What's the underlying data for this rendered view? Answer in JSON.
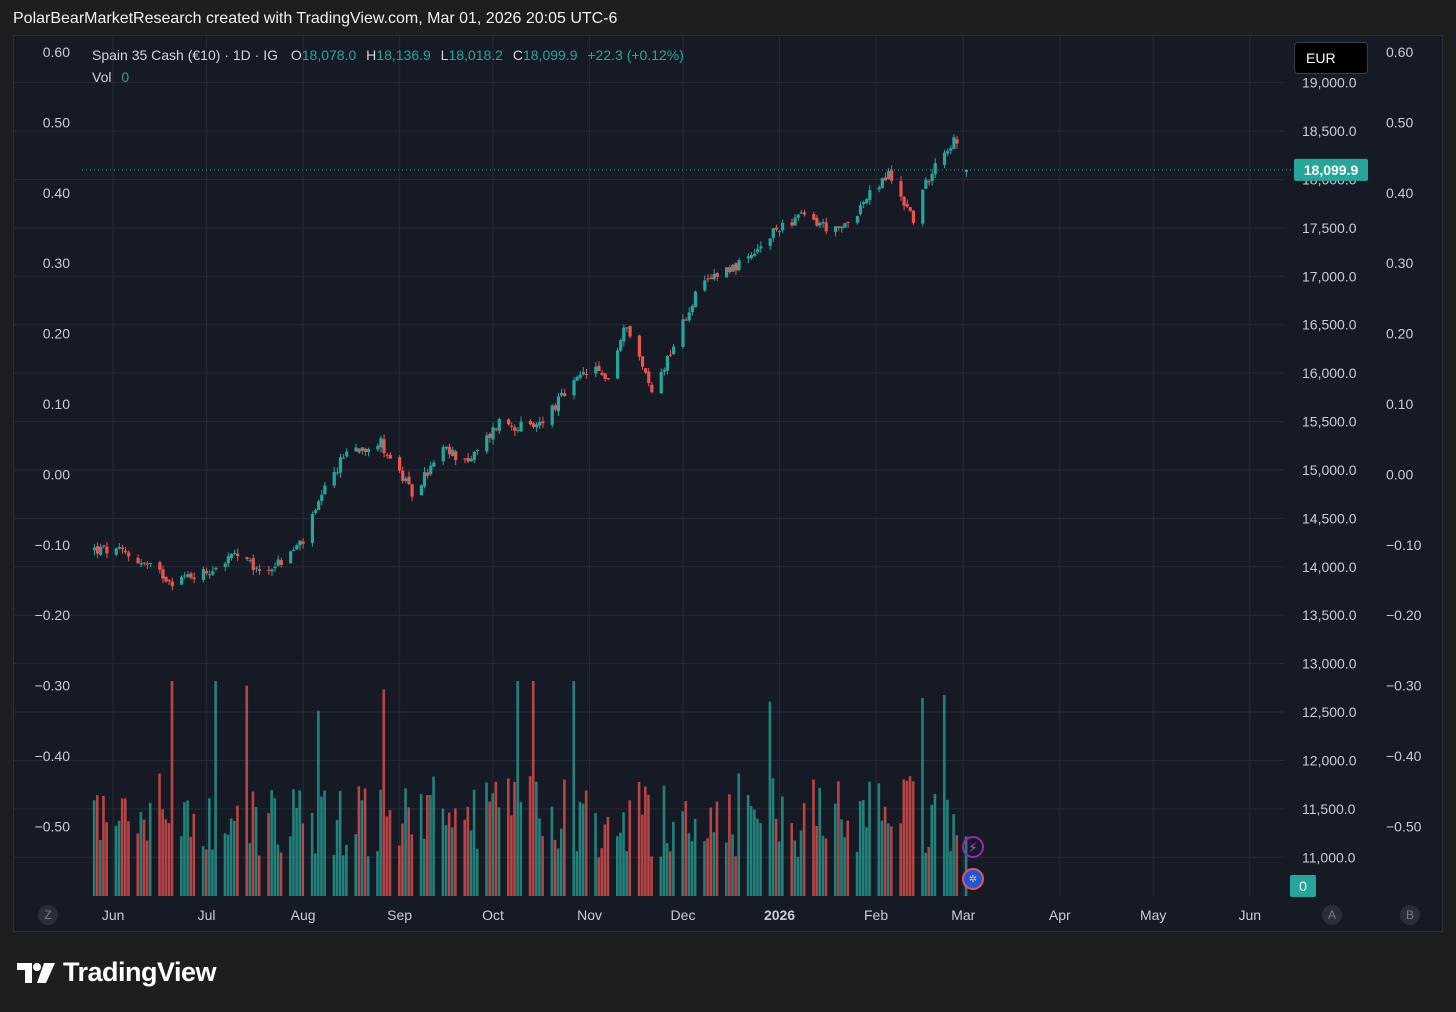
{
  "header": {
    "attribution": "PolarBearMarketResearch created with TradingView.com, Mar 01, 2026 20:05 UTC-6"
  },
  "legend": {
    "symbol": "Spain 35 Cash (€10) · 1D · IG",
    "open_label": "O",
    "open": "18,078.0",
    "high_label": "H",
    "high": "18,136.9",
    "low_label": "L",
    "low": "18,018.2",
    "close_label": "C",
    "close": "18,099.9",
    "change": "+22.3 (+0.12%)",
    "vol_label": "Vol",
    "vol_value": "0"
  },
  "currency": "EUR",
  "price_badge": "18,099.9",
  "volume_badge": "0",
  "corner_buttons": {
    "left": "Z",
    "right_a": "A",
    "right_b": "B"
  },
  "footer": {
    "brand": "TradingView"
  },
  "colors": {
    "up": "#26a69a",
    "down": "#ef5350",
    "background": "#161a25",
    "grid": "#252a36",
    "text": "#d1d4dc"
  },
  "chart_data": {
    "type": "candlestick",
    "title": "Spain 35 Cash (€10) · 1D · IG",
    "x_tick_labels": [
      "Jun",
      "Jul",
      "Aug",
      "Sep",
      "Oct",
      "Nov",
      "Dec",
      "2026",
      "Feb",
      "Mar",
      "Apr",
      "May",
      "Jun"
    ],
    "y_right_ticks": [
      "19,000.0",
      "18,500.0",
      "18,000.0",
      "17,500.0",
      "17,000.0",
      "16,500.0",
      "16,000.0",
      "15,500.0",
      "15,000.0",
      "14,500.0",
      "14,000.0",
      "13,500.0",
      "13,000.0",
      "12,500.0",
      "12,000.0",
      "11,500.0",
      "11,000.0"
    ],
    "y_right_range": [
      10600,
      19100
    ],
    "percent_axis_ticks": [
      "0.60",
      "0.50",
      "0.40",
      "0.30",
      "0.20",
      "0.10",
      "0.00",
      "−0.10",
      "−0.20",
      "−0.30",
      "−0.40",
      "−0.50"
    ],
    "percent_axis_range": [
      -0.6,
      0.6
    ],
    "last_price": 18099.9,
    "price_anchors": [
      {
        "date": "2025-05-26",
        "close": 14180
      },
      {
        "date": "2025-06-05",
        "close": 14140
      },
      {
        "date": "2025-06-20",
        "close": 13860
      },
      {
        "date": "2025-07-01",
        "close": 13950
      },
      {
        "date": "2025-07-10",
        "close": 14120
      },
      {
        "date": "2025-07-18",
        "close": 13950
      },
      {
        "date": "2025-07-25",
        "close": 14050
      },
      {
        "date": "2025-08-01",
        "close": 14270
      },
      {
        "date": "2025-08-08",
        "close": 14780
      },
      {
        "date": "2025-08-15",
        "close": 15200
      },
      {
        "date": "2025-08-26",
        "close": 15280
      },
      {
        "date": "2025-09-05",
        "close": 14750
      },
      {
        "date": "2025-09-15",
        "close": 15200
      },
      {
        "date": "2025-09-24",
        "close": 15100
      },
      {
        "date": "2025-10-03",
        "close": 15500
      },
      {
        "date": "2025-10-14",
        "close": 15420
      },
      {
        "date": "2025-10-24",
        "close": 15780
      },
      {
        "date": "2025-11-01",
        "close": 16050
      },
      {
        "date": "2025-11-07",
        "close": 15950
      },
      {
        "date": "2025-11-13",
        "close": 16520
      },
      {
        "date": "2025-11-21",
        "close": 15800
      },
      {
        "date": "2025-11-28",
        "close": 16300
      },
      {
        "date": "2025-12-05",
        "close": 16800
      },
      {
        "date": "2025-12-12",
        "close": 17050
      },
      {
        "date": "2025-12-22",
        "close": 17150
      },
      {
        "date": "2026-01-02",
        "close": 17550
      },
      {
        "date": "2026-01-09",
        "close": 17620
      },
      {
        "date": "2026-01-20",
        "close": 17450
      },
      {
        "date": "2026-01-29",
        "close": 17800
      },
      {
        "date": "2026-02-05",
        "close": 18050
      },
      {
        "date": "2026-02-13",
        "close": 17600
      },
      {
        "date": "2026-02-20",
        "close": 18200
      },
      {
        "date": "2026-02-26",
        "close": 18400
      },
      {
        "date": "2026-03-02",
        "close": 18099.9
      }
    ]
  }
}
